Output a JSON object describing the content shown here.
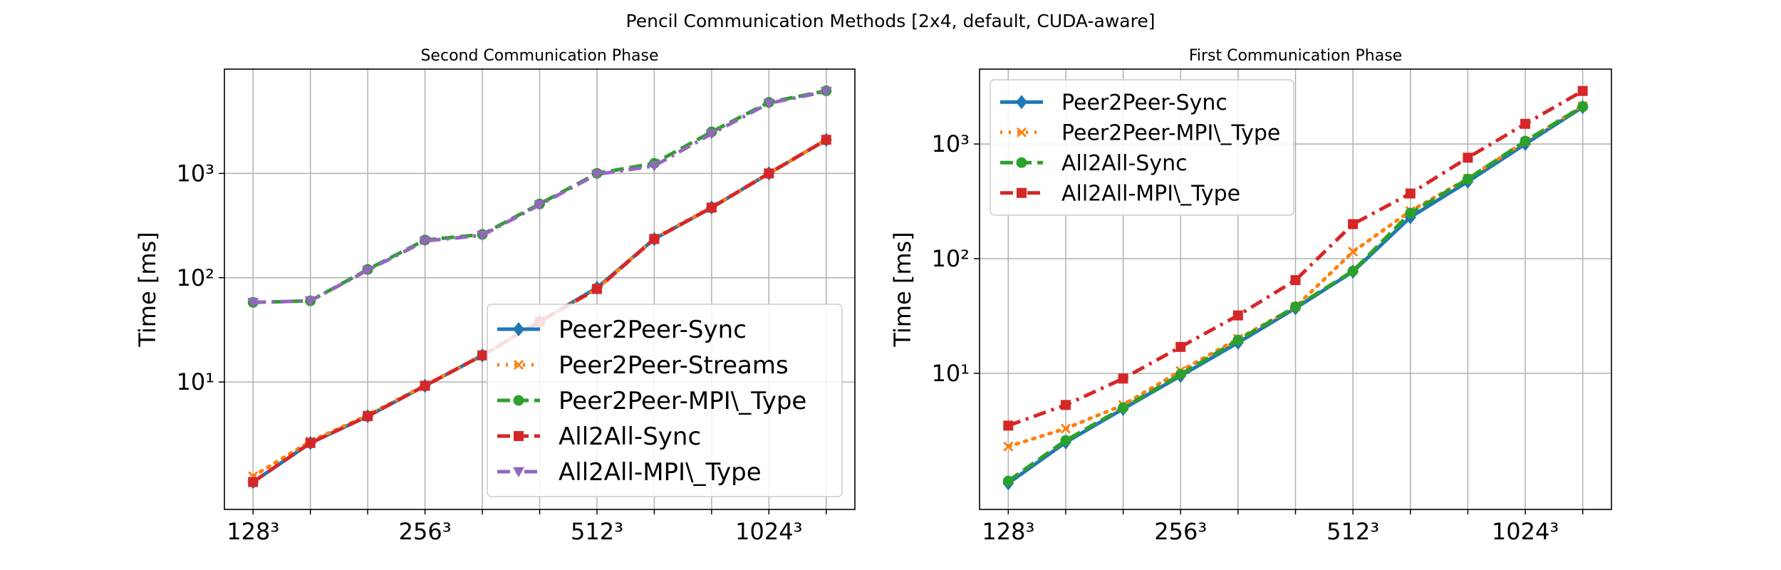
{
  "figure_title": "Pencil Communication Methods [2x4, default, CUDA-aware]",
  "chart_data": [
    {
      "type": "line",
      "title": "Second Communication Phase",
      "ylabel": "Time [ms]",
      "xlabel": "",
      "y_scale": "log",
      "ylim": [
        0.6,
        10000
      ],
      "xlim": [
        0.5,
        11.5
      ],
      "grid": true,
      "legend_position": "lower-right",
      "x_ticks": [
        1,
        4,
        7,
        10
      ],
      "x_tick_labels": [
        "128³",
        "256³",
        "512³",
        "1024³"
      ],
      "y_ticks": [
        10,
        100,
        1000
      ],
      "y_tick_labels": [
        "10¹",
        "10²",
        "10³"
      ],
      "x": [
        1,
        2,
        3,
        4,
        5,
        6,
        7,
        8,
        9,
        10,
        11
      ],
      "series": [
        {
          "name": "Peer2Peer-Sync",
          "color": "#1f77b4",
          "dash": "solid",
          "marker": "diamond",
          "values": [
            1.1,
            2.6,
            4.7,
            9.2,
            18,
            38,
            80,
            235,
            470,
            1000,
            2100
          ]
        },
        {
          "name": "Peer2Peer-Streams",
          "color": "#ff7f0e",
          "dash": "dotted",
          "marker": "x",
          "values": [
            1.25,
            2.7,
            4.8,
            9.3,
            18,
            38,
            78,
            238,
            475,
            1000,
            2100
          ]
        },
        {
          "name": "Peer2Peer-MPI\\_Type",
          "color": "#2ca02c",
          "dash": "dashed",
          "marker": "circle",
          "values": [
            58,
            60,
            120,
            230,
            260,
            510,
            1000,
            1250,
            2500,
            4800,
            6200
          ]
        },
        {
          "name": "All2All-Sync",
          "color": "#d62728",
          "dash": "dashed",
          "marker": "square",
          "values": [
            1.1,
            2.6,
            4.7,
            9.2,
            18,
            38,
            78,
            235,
            470,
            1000,
            2100
          ]
        },
        {
          "name": "All2All-MPI\\_Type",
          "color": "#9467bd",
          "dash": "dashdot",
          "marker": "triangle-down",
          "values": [
            58,
            60,
            118,
            225,
            255,
            500,
            980,
            1180,
            2400,
            4700,
            6100
          ]
        }
      ]
    },
    {
      "type": "line",
      "title": "First Communication Phase",
      "ylabel": "Time [ms]",
      "xlabel": "",
      "y_scale": "log",
      "ylim": [
        0.65,
        4500
      ],
      "xlim": [
        0.5,
        11.5
      ],
      "grid": true,
      "legend_position": "upper-left",
      "x_ticks": [
        1,
        4,
        7,
        10
      ],
      "x_tick_labels": [
        "128³",
        "256³",
        "512³",
        "1024³"
      ],
      "y_ticks": [
        10,
        100,
        1000
      ],
      "y_tick_labels": [
        "10¹",
        "10²",
        "10³"
      ],
      "x": [
        1,
        2,
        3,
        4,
        5,
        6,
        7,
        8,
        9,
        10,
        11
      ],
      "series": [
        {
          "name": "Peer2Peer-Sync",
          "color": "#1f77b4",
          "dash": "solid",
          "marker": "diamond",
          "values": [
            1.1,
            2.5,
            4.9,
            9.5,
            18.5,
            37,
            77,
            230,
            470,
            1000,
            2100
          ]
        },
        {
          "name": "Peer2Peer-MPI\\_Type",
          "color": "#ff7f0e",
          "dash": "dotted",
          "marker": "x",
          "values": [
            2.3,
            3.3,
            5.3,
            10.5,
            20,
            38,
            115,
            260,
            500,
            1050,
            2150
          ]
        },
        {
          "name": "All2All-Sync",
          "color": "#2ca02c",
          "dash": "dashed",
          "marker": "circle",
          "values": [
            1.15,
            2.6,
            5.0,
            9.8,
            19.5,
            38,
            78,
            250,
            495,
            1060,
            2120
          ]
        },
        {
          "name": "All2All-MPI\\_Type",
          "color": "#d62728",
          "dash": "dashdot",
          "marker": "square",
          "values": [
            3.5,
            5.3,
            9.0,
            17,
            32,
            65,
            200,
            370,
            760,
            1500,
            2900
          ]
        }
      ]
    }
  ]
}
